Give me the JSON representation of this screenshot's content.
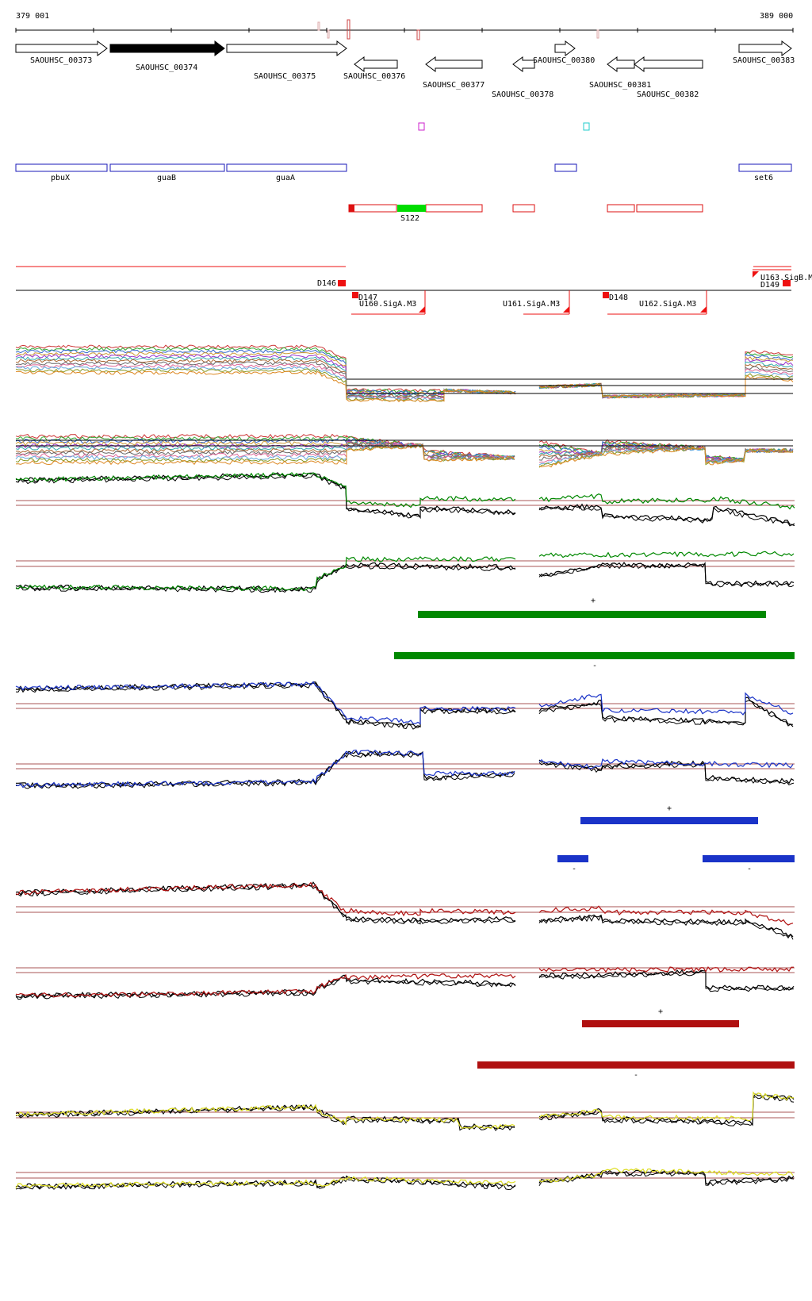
{
  "ruler": {
    "start_label": "379 001",
    "end_label": "389 000"
  },
  "colors": {
    "gene_outline": "#000000",
    "gene_highlight": "#000000",
    "annotation_blue": "#1a1ab8",
    "feature_red": "#dd1111",
    "feature_green": "#00dd00",
    "sigma_red": "#ee1111",
    "green_track": "#008800",
    "blue_track": "#1a33c8",
    "red_track": "#b01010",
    "yellow_track": "#dddd22",
    "baseline": "#aa5555"
  },
  "genes": [
    {
      "name": "SAOUHSC_00373",
      "strand": "+",
      "highlight": false
    },
    {
      "name": "SAOUHSC_00374",
      "strand": "+",
      "highlight": true
    },
    {
      "name": "SAOUHSC_00375",
      "strand": "+",
      "highlight": false
    },
    {
      "name": "SAOUHSC_00376",
      "strand": "-",
      "highlight": false
    },
    {
      "name": "SAOUHSC_00377",
      "strand": "-",
      "highlight": false
    },
    {
      "name": "SAOUHSC_00378",
      "strand": "-",
      "highlight": false
    },
    {
      "name": "SAOUHSC_00380",
      "strand": "+",
      "highlight": false
    },
    {
      "name": "SAOUHSC_00381",
      "strand": "-",
      "highlight": false
    },
    {
      "name": "SAOUHSC_00382",
      "strand": "-",
      "highlight": false
    },
    {
      "name": "SAOUHSC_00383",
      "strand": "+",
      "highlight": false
    }
  ],
  "annotations": [
    {
      "name": "pbuX"
    },
    {
      "name": "guaB"
    },
    {
      "name": "guaA"
    },
    {
      "name": ""
    },
    {
      "name": "set6"
    }
  ],
  "features": [
    {
      "name": "S122"
    }
  ],
  "sigma_sites": [
    {
      "label": "D146"
    },
    {
      "label": "D147"
    },
    {
      "label": "U160.SigA.M3"
    },
    {
      "label": "U161.SigA.M3"
    },
    {
      "label": "D148"
    },
    {
      "label": "U162.SigA.M3"
    },
    {
      "label": "U163.SigB.M"
    },
    {
      "label": "D149"
    }
  ],
  "segment_bars": [
    {
      "track": "green",
      "strand_label": "+"
    },
    {
      "track": "green",
      "strand_label": "-"
    },
    {
      "track": "blue",
      "strand_label": "+"
    },
    {
      "track": "blue",
      "strand_label": "-"
    },
    {
      "track": "blue",
      "strand_label": "-"
    },
    {
      "track": "red",
      "strand_label": "+"
    },
    {
      "track": "red",
      "strand_label": "-"
    }
  ]
}
